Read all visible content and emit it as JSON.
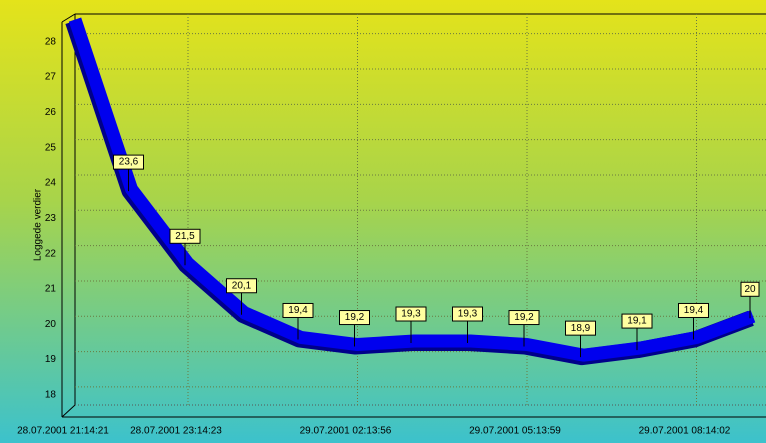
{
  "chart_data": {
    "type": "line",
    "y_label": "Loggede verdier",
    "categories": [
      "28.07.2001 21:14:21",
      null,
      "28.07.2001 23:14:23",
      null,
      null,
      "29.07.2001 02:13:56",
      null,
      null,
      "29.07.2001 05:13:59",
      null,
      null,
      "29.07.2001 08:14:02",
      null
    ],
    "series": [
      {
        "name": null,
        "color": "#0000ee",
        "values": [
          28.4,
          23.6,
          21.5,
          20.1,
          19.4,
          19.2,
          19.3,
          19.3,
          19.2,
          18.9,
          19.1,
          19.4,
          20
        ],
        "value_labels": [
          null,
          "23,6",
          "21,5",
          "20,1",
          "19,4",
          "19,2",
          "19,3",
          "19,3",
          "19,2",
          "18,9",
          "19,1",
          "19,4",
          "20"
        ]
      }
    ],
    "ylim": [
      17.5,
      28.5
    ],
    "yticks": [
      18,
      19,
      20,
      21,
      22,
      23,
      24,
      25,
      26,
      27,
      28
    ],
    "grid": true
  }
}
